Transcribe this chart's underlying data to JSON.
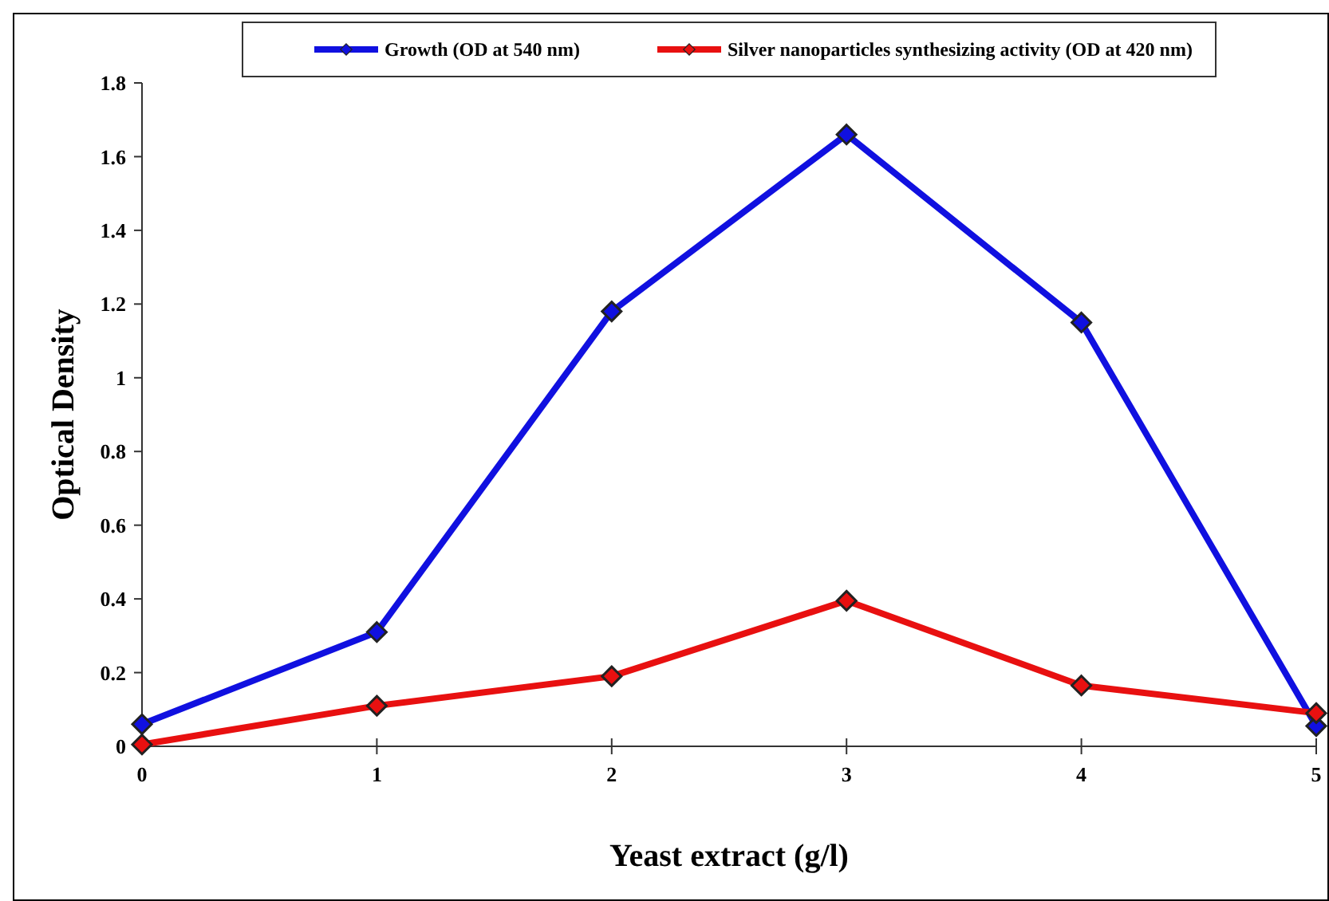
{
  "chart_data": {
    "type": "line",
    "xlabel": "Yeast extract (g/l)",
    "ylabel": "Optical Density",
    "x": [
      0,
      1,
      2,
      3,
      4,
      5
    ],
    "series": [
      {
        "name": "Growth (OD at 540 nm)",
        "color": "#1010e0",
        "values": [
          0.06,
          0.31,
          1.18,
          1.66,
          1.15,
          0.055
        ]
      },
      {
        "name": "Silver nanoparticles synthesizing activity (OD at 420 nm)",
        "color": "#e81010",
        "values": [
          0.005,
          0.11,
          0.19,
          0.395,
          0.165,
          0.09
        ]
      }
    ],
    "xlim": [
      0,
      5
    ],
    "xticks": [
      0,
      1,
      2,
      3,
      4,
      5
    ],
    "ylim": [
      0,
      1.8
    ],
    "yticks": [
      0,
      0.2,
      0.4,
      0.6,
      0.8,
      1,
      1.2,
      1.4,
      1.6,
      1.8
    ],
    "grid": false,
    "legend": "top",
    "marker": "diamond",
    "line_style": "solid"
  }
}
